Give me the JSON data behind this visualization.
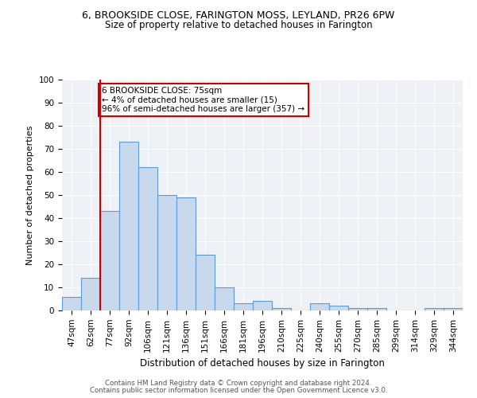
{
  "title1": "6, BROOKSIDE CLOSE, FARINGTON MOSS, LEYLAND, PR26 6PW",
  "title2": "Size of property relative to detached houses in Farington",
  "xlabel": "Distribution of detached houses by size in Farington",
  "ylabel": "Number of detached properties",
  "bin_labels": [
    "47sqm",
    "62sqm",
    "77sqm",
    "92sqm",
    "106sqm",
    "121sqm",
    "136sqm",
    "151sqm",
    "166sqm",
    "181sqm",
    "196sqm",
    "210sqm",
    "225sqm",
    "240sqm",
    "255sqm",
    "270sqm",
    "285sqm",
    "299sqm",
    "314sqm",
    "329sqm",
    "344sqm"
  ],
  "bar_values": [
    6,
    14,
    43,
    73,
    62,
    50,
    49,
    24,
    10,
    3,
    4,
    1,
    0,
    3,
    2,
    1,
    1,
    0,
    0,
    1,
    1
  ],
  "bar_color": "#c8d9ed",
  "bar_edge_color": "#5b9bd5",
  "red_line_index": 2,
  "annotation_text": "6 BROOKSIDE CLOSE: 75sqm\n← 4% of detached houses are smaller (15)\n96% of semi-detached houses are larger (357) →",
  "annotation_box_color": "#ffffff",
  "annotation_box_edge_color": "#cc0000",
  "red_line_color": "#cc0000",
  "footer1": "Contains HM Land Registry data © Crown copyright and database right 2024.",
  "footer2": "Contains public sector information licensed under the Open Government Licence v3.0.",
  "ylim": [
    0,
    100
  ],
  "bg_color": "#eef2f7",
  "title1_fontsize": 9.0,
  "title2_fontsize": 8.5,
  "xlabel_fontsize": 8.5,
  "ylabel_fontsize": 8.0,
  "tick_fontsize": 7.5,
  "footer_fontsize": 6.2,
  "annot_fontsize": 7.5
}
